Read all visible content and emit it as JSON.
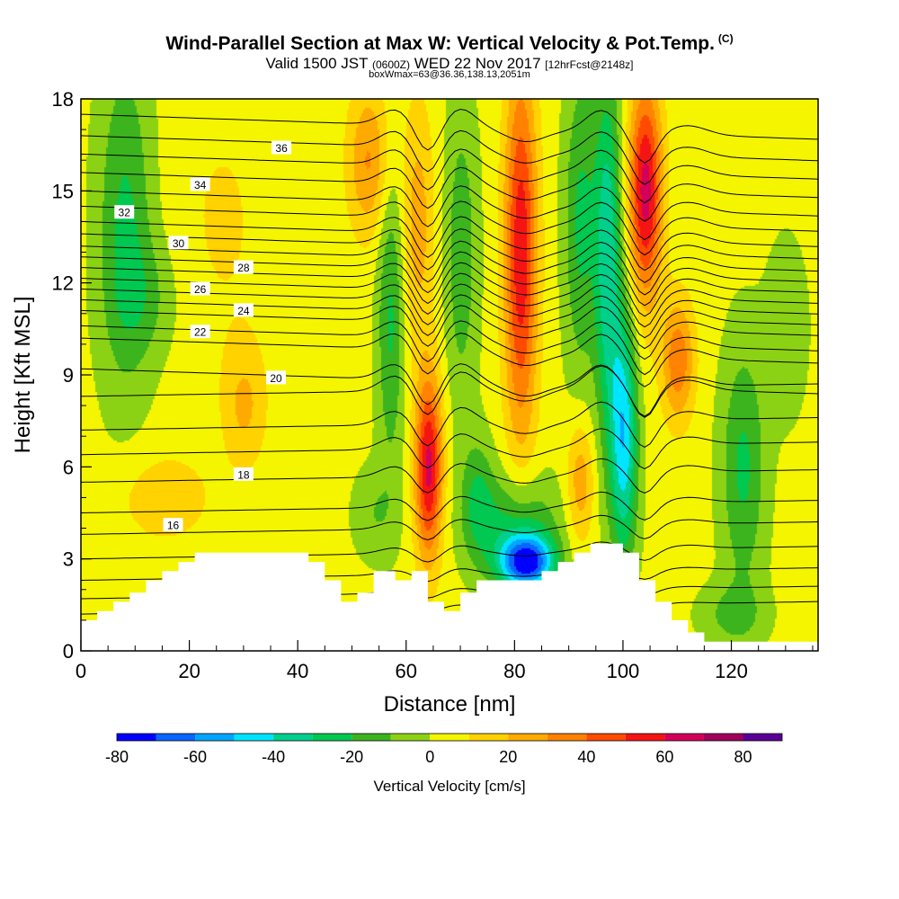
{
  "header": {
    "title": "Wind-Parallel Section at Max W: Vertical Velocity & Pot.Temp.",
    "copyright": "(C)",
    "subtitle_a": "Valid 1500 JST",
    "subtitle_z": "(0600Z)",
    "subtitle_b": "WED 22 Nov 2017",
    "subtitle_fcst": "[12hrFcst@2148z]",
    "boxline": "boxWmax=63@36.36,138.13,2051m"
  },
  "chart_data": {
    "type": "heatmap",
    "xlabel": "Distance [nm]",
    "ylabel": "Height [Kft MSL]",
    "xlim": [
      0,
      136
    ],
    "ylim": [
      0,
      18
    ],
    "x_ticks": [
      0,
      20,
      40,
      60,
      80,
      100,
      120
    ],
    "y_ticks": [
      0,
      3,
      6,
      9,
      12,
      15,
      18
    ],
    "colorbar": {
      "title": "Vertical Velocity [cm/s]",
      "labels": [
        "-80",
        "-60",
        "-40",
        "-20",
        "0",
        "20",
        "40",
        "60",
        "80"
      ],
      "bounds": [
        -80,
        -70,
        -60,
        -50,
        -40,
        -30,
        -20,
        -10,
        0,
        10,
        20,
        30,
        40,
        50,
        60,
        70,
        80,
        90
      ],
      "colors": [
        "#0000ff",
        "#0a64ff",
        "#00a5ff",
        "#00e5ff",
        "#00d08c",
        "#00c850",
        "#3cb41e",
        "#8cd214",
        "#f5f500",
        "#ffd200",
        "#ffaa00",
        "#ff8200",
        "#ff4b00",
        "#f51414",
        "#d2005a",
        "#a0005a",
        "#5a0096"
      ]
    },
    "terrain": [
      [
        0,
        1.0
      ],
      [
        3,
        1.0
      ],
      [
        3,
        1.3
      ],
      [
        6,
        1.3
      ],
      [
        6,
        1.6
      ],
      [
        9,
        1.6
      ],
      [
        9,
        1.9
      ],
      [
        12,
        1.9
      ],
      [
        12,
        2.3
      ],
      [
        15,
        2.3
      ],
      [
        15,
        2.6
      ],
      [
        18,
        2.6
      ],
      [
        18,
        2.9
      ],
      [
        21,
        2.9
      ],
      [
        21,
        3.2
      ],
      [
        42,
        3.2
      ],
      [
        42,
        2.9
      ],
      [
        45,
        2.9
      ],
      [
        45,
        2.3
      ],
      [
        48,
        2.3
      ],
      [
        48,
        1.6
      ],
      [
        51,
        1.6
      ],
      [
        51,
        1.9
      ],
      [
        54,
        1.9
      ],
      [
        54,
        2.6
      ],
      [
        58,
        2.6
      ],
      [
        58,
        2.3
      ],
      [
        61,
        2.3
      ],
      [
        61,
        2.6
      ],
      [
        64,
        2.6
      ],
      [
        64,
        1.6
      ],
      [
        67,
        1.6
      ],
      [
        67,
        1.3
      ],
      [
        70,
        1.3
      ],
      [
        70,
        1.9
      ],
      [
        73,
        1.9
      ],
      [
        73,
        2.3
      ],
      [
        85,
        2.3
      ],
      [
        85,
        2.6
      ],
      [
        88,
        2.6
      ],
      [
        88,
        2.9
      ],
      [
        91,
        2.9
      ],
      [
        91,
        3.2
      ],
      [
        94,
        3.2
      ],
      [
        94,
        3.5
      ],
      [
        100,
        3.5
      ],
      [
        100,
        3.2
      ],
      [
        103,
        3.2
      ],
      [
        103,
        2.3
      ],
      [
        106,
        2.3
      ],
      [
        106,
        1.6
      ],
      [
        109,
        1.6
      ],
      [
        109,
        1.0
      ],
      [
        112,
        1.0
      ],
      [
        112,
        0.6
      ],
      [
        115,
        0.6
      ],
      [
        115,
        0.3
      ],
      [
        136,
        0.3
      ]
    ],
    "w_cells": [
      {
        "x": 8,
        "y": 14,
        "sx": 5,
        "sy": 5.5,
        "v": -25
      },
      {
        "x": 12,
        "y": 11.5,
        "sx": 6,
        "sy": 2,
        "v": -12
      },
      {
        "x": 26,
        "y": 14,
        "sx": 10,
        "sy": 5,
        "v": 8
      },
      {
        "x": 30,
        "y": 8,
        "sx": 4,
        "sy": 2,
        "v": 18
      },
      {
        "x": 15,
        "y": 5,
        "sx": 9,
        "sy": 1.5,
        "v": 14
      },
      {
        "x": 53,
        "y": 16,
        "sx": 4,
        "sy": 2.5,
        "v": 28
      },
      {
        "x": 62,
        "y": 14,
        "sx": 3,
        "sy": 4,
        "v": 22
      },
      {
        "x": 57,
        "y": 11,
        "sx": 2.5,
        "sy": 5,
        "v": -25
      },
      {
        "x": 54,
        "y": 4.5,
        "sx": 4,
        "sy": 1.5,
        "v": -12
      },
      {
        "x": 64,
        "y": 6,
        "sx": 2.5,
        "sy": 3,
        "v": 60
      },
      {
        "x": 70,
        "y": 13,
        "sx": 3,
        "sy": 5,
        "v": -20
      },
      {
        "x": 73,
        "y": 5,
        "sx": 3,
        "sy": 2,
        "v": -20
      },
      {
        "x": 82,
        "y": 2.9,
        "sx": 5,
        "sy": 0.9,
        "v": -78
      },
      {
        "x": 80,
        "y": 4.2,
        "sx": 8,
        "sy": 1.6,
        "v": -25
      },
      {
        "x": 81,
        "y": 13,
        "sx": 3,
        "sy": 6,
        "v": 55
      },
      {
        "x": 92,
        "y": 5.5,
        "sx": 2.5,
        "sy": 2,
        "v": 25
      },
      {
        "x": 92,
        "y": 14,
        "sx": 3,
        "sy": 5,
        "v": -25
      },
      {
        "x": 97,
        "y": 13,
        "sx": 2.5,
        "sy": 6,
        "v": -40
      },
      {
        "x": 100,
        "y": 7,
        "sx": 2.5,
        "sy": 4,
        "v": -50
      },
      {
        "x": 104,
        "y": 15,
        "sx": 3,
        "sy": 3.5,
        "v": 62
      },
      {
        "x": 110,
        "y": 9.5,
        "sx": 3,
        "sy": 2,
        "v": 35
      },
      {
        "x": 122,
        "y": 6,
        "sx": 4,
        "sy": 4,
        "v": -25
      },
      {
        "x": 130,
        "y": 10.5,
        "sx": 4,
        "sy": 3,
        "v": -10
      },
      {
        "x": 120,
        "y": 1.2,
        "sx": 6,
        "sy": 1,
        "v": -15
      }
    ],
    "theta_contours": [
      {
        "label": "16",
        "base": 3.8,
        "label_x": 17,
        "label_y": 4.1
      },
      {
        "label": "18",
        "base": 5.5,
        "label_x": 30,
        "label_y": 5.75
      },
      {
        "label": "20",
        "base": 8.3,
        "label_x": 36,
        "label_y": 8.9
      },
      {
        "label": "22",
        "base": 10.2,
        "label_x": 22,
        "label_y": 10.4
      },
      {
        "label": "24",
        "base": 11.1,
        "label_x": 30,
        "label_y": 11.1
      },
      {
        "label": "26",
        "base": 11.8,
        "label_x": 22,
        "label_y": 11.8
      },
      {
        "label": "28",
        "base": 12.5,
        "label_x": 30,
        "label_y": 12.5
      },
      {
        "label": "30",
        "base": 13.2,
        "label_x": 18,
        "label_y": 13.3
      },
      {
        "label": "32",
        "base": 14.0,
        "label_x": 8,
        "label_y": 14.3
      },
      {
        "label": "34",
        "base": 15.0,
        "label_x": 22,
        "label_y": 15.2
      },
      {
        "label": "36",
        "base": 16.2,
        "label_x": 37,
        "label_y": 16.4
      }
    ]
  }
}
